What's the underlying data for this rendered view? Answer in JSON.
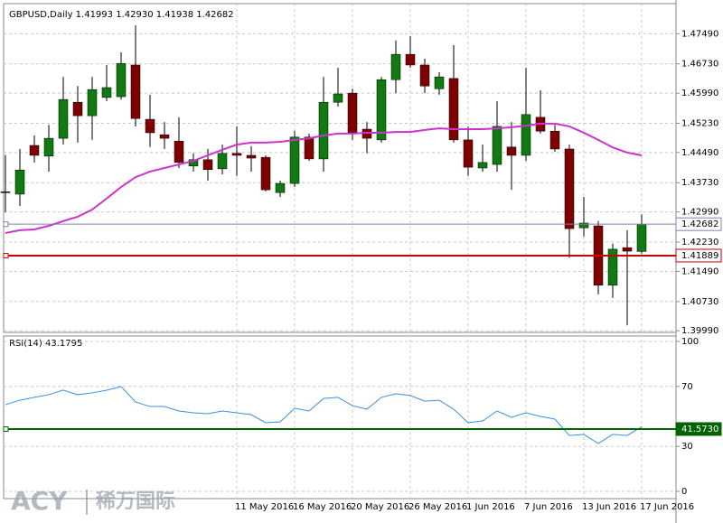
{
  "chart_data": [
    {
      "type": "candlestick",
      "title": "GBPUSD,Daily  1.41993 1.42930 1.41938 1.42682",
      "categories": [
        null,
        null,
        null,
        null,
        null,
        null,
        null,
        null,
        null,
        null,
        null,
        null,
        null,
        null,
        null,
        null,
        "11 May 2016",
        null,
        null,
        null,
        "16 May 2016",
        null,
        null,
        null,
        "20 May 2016",
        null,
        null,
        null,
        "26 May 2016",
        null,
        null,
        null,
        "1 Jun 2016",
        null,
        null,
        null,
        "7 Jun 2016",
        null,
        null,
        null,
        "13 Jun 2016",
        null,
        null,
        null,
        "17 Jun 2016"
      ],
      "open": [
        1.435,
        1.4344,
        1.4467,
        1.444,
        1.4485,
        1.4576,
        1.4542,
        1.4588,
        1.459,
        1.467,
        1.4533,
        1.4494,
        1.4478,
        1.4415,
        1.4431,
        1.4408,
        1.4447,
        1.4442,
        1.4437,
        1.4348,
        1.4371,
        1.4488,
        1.4433,
        1.4576,
        1.4599,
        1.4508,
        1.4481,
        1.4633,
        1.4697,
        1.467,
        1.461,
        1.4636,
        1.4481,
        1.441,
        1.4419,
        1.4463,
        1.4442,
        1.4538,
        1.4503,
        1.4458,
        1.4259,
        1.4264,
        1.4114,
        1.4209,
        1.41993
      ],
      "high": [
        1.4443,
        1.4458,
        1.4492,
        1.4519,
        1.464,
        1.4617,
        1.464,
        1.467,
        1.4702,
        1.477,
        1.4595,
        1.4526,
        1.4538,
        1.4447,
        1.4458,
        1.4469,
        1.4515,
        1.4465,
        1.4442,
        1.4378,
        1.4504,
        1.4497,
        1.464,
        1.4663,
        1.461,
        1.4526,
        1.464,
        1.4732,
        1.4743,
        1.4686,
        1.4652,
        1.472,
        1.4515,
        1.4469,
        1.4579,
        1.4526,
        1.4663,
        1.4606,
        1.4519,
        1.4469,
        1.4337,
        1.4276,
        1.4219,
        1.4253,
        1.4293
      ],
      "low": [
        1.4298,
        1.4314,
        1.4424,
        1.4401,
        1.4469,
        1.4474,
        1.4481,
        1.4579,
        1.4583,
        1.4515,
        1.4463,
        1.4458,
        1.441,
        1.4401,
        1.4378,
        1.4394,
        1.439,
        1.4401,
        1.4351,
        1.4337,
        1.4362,
        1.4428,
        1.4401,
        1.4565,
        1.4481,
        1.4447,
        1.4474,
        1.4599,
        1.4663,
        1.4599,
        1.4595,
        1.4474,
        1.439,
        1.4401,
        1.4401,
        1.4355,
        1.4428,
        1.4497,
        1.4451,
        1.4184,
        1.4237,
        1.4091,
        1.4082,
        1.4013,
        1.41938
      ],
      "close": [
        1.4348,
        1.4405,
        1.4442,
        1.4485,
        1.4583,
        1.4542,
        1.4608,
        1.4613,
        1.4674,
        1.4535,
        1.4499,
        1.4485,
        1.4424,
        1.4431,
        1.4406,
        1.4447,
        1.4442,
        1.4435,
        1.4355,
        1.4371,
        1.4488,
        1.4433,
        1.4576,
        1.4597,
        1.4499,
        1.4485,
        1.4633,
        1.4697,
        1.467,
        1.4617,
        1.464,
        1.4481,
        1.4412,
        1.4424,
        1.4515,
        1.4442,
        1.4545,
        1.4503,
        1.4458,
        1.4257,
        1.4271,
        1.4114,
        1.4205,
        1.42,
        1.42682
      ],
      "up_color": "#0f7a0f",
      "down_color": "#800000",
      "ma": {
        "color": "#cc33cc",
        "values": [
          1.4246,
          1.4253,
          1.4255,
          1.4264,
          1.4276,
          1.4287,
          1.4305,
          1.4333,
          1.4362,
          1.4387,
          1.4401,
          1.441,
          1.4419,
          1.4428,
          1.4442,
          1.4456,
          1.4469,
          1.4474,
          1.4474,
          1.4476,
          1.4481,
          1.4485,
          1.4492,
          1.4497,
          1.4497,
          1.4499,
          1.4499,
          1.4501,
          1.4501,
          1.4506,
          1.451,
          1.4508,
          1.4508,
          1.4508,
          1.451,
          1.4513,
          1.4517,
          1.4522,
          1.4522,
          1.4515,
          1.4499,
          1.4481,
          1.4462,
          1.4449,
          1.4442
        ]
      },
      "ylim": [
        1.3995,
        1.4825
      ],
      "yticks": [
        {
          "value": 1.4749,
          "label": "1.47490"
        },
        {
          "value": 1.4673,
          "label": "1.46730"
        },
        {
          "value": 1.4599,
          "label": "1.45990"
        },
        {
          "value": 1.4523,
          "label": "1.45230"
        },
        {
          "value": 1.4449,
          "label": "1.44490"
        },
        {
          "value": 1.4373,
          "label": "1.43730"
        },
        {
          "value": 1.4299,
          "label": "1.42990"
        },
        {
          "value": 1.4223,
          "label": "1.42230"
        },
        {
          "value": 1.4149,
          "label": "1.41490"
        },
        {
          "value": 1.4073,
          "label": "1.40730"
        },
        {
          "value": 1.3999,
          "label": "1.39990"
        }
      ],
      "hlines": [
        {
          "value": 1.42682,
          "color": "#8080b0"
        },
        {
          "value": 1.41889,
          "color": "#cc0000"
        }
      ],
      "grid": true
    },
    {
      "type": "line",
      "title": "RSI(14) 43.1795",
      "color": "#3a8ee6",
      "values": [
        57.8,
        60.8,
        62.7,
        64.5,
        67.5,
        64.5,
        65.7,
        67.5,
        69.9,
        59.6,
        56.6,
        56.6,
        53.6,
        52.4,
        51.8,
        53.6,
        52.4,
        51.2,
        45.8,
        46.4,
        55.4,
        53.6,
        62.0,
        62.7,
        57.2,
        54.8,
        62.7,
        65.1,
        63.9,
        60.2,
        60.8,
        54.8,
        45.8,
        47.0,
        53.6,
        49.4,
        52.4,
        50.0,
        48.2,
        37.3,
        38.0,
        31.9,
        38.0,
        37.3,
        43.2
      ],
      "ylim": [
        0,
        100
      ],
      "yticks": [
        100,
        70,
        30,
        0
      ],
      "hlines": [
        {
          "value": 41.573,
          "label": "41.5730",
          "color": "#006400"
        }
      ],
      "grid": true
    }
  ],
  "watermark": {
    "brand": "ACY",
    "name": "稀万国际"
  }
}
